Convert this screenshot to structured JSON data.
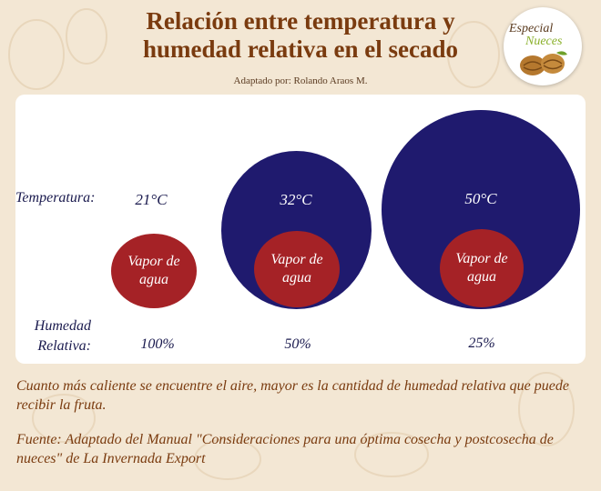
{
  "title_line1": "Relación entre temperatura y",
  "title_line2": "humedad relativa en el secado",
  "subtitle": "Adaptado por: Rolando Araos M.",
  "badge": {
    "line1": "Especial",
    "line2": "Nueces",
    "icon": "walnut-icon"
  },
  "labels": {
    "temperature": "Temperatura:",
    "humidity_line1": "Humedad",
    "humidity_line2": "Relativa:"
  },
  "cases": [
    {
      "temperature": "21°C",
      "vapor_line1": "Vapor de",
      "vapor_line2": "agua",
      "humidity": "100%"
    },
    {
      "temperature": "32°C",
      "vapor_line1": "Vapor de",
      "vapor_line2": "agua",
      "humidity": "50%"
    },
    {
      "temperature": "50°C",
      "vapor_line1": "Vapor de",
      "vapor_line2": "agua",
      "humidity": "25%"
    }
  ],
  "colors": {
    "air": "#1f1a6e",
    "vapor": "#a52226",
    "title": "#7a3b0f",
    "background": "#f3e7d4"
  },
  "caption": "Cuanto más caliente se encuentre el aire, mayor es la cantidad de humedad relativa que puede recibir la fruta.",
  "source": "Fuente: Adaptado del Manual \"Consideraciones para una óptima cosecha y postcosecha de nueces\" de La Invernada Export"
}
